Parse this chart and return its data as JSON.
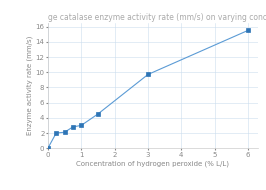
{
  "title": "ge catalase enzyme activity rate (mm/s) on varying concentrations of diluted hydrogen p",
  "xlabel": "Concentration of hydrogen peroxide (% L/L)",
  "ylabel": "Enzyme activity rate (mm/s)",
  "x": [
    0,
    0.25,
    0.5,
    0.75,
    1.0,
    1.5,
    3.0,
    6.0
  ],
  "y": [
    0,
    2.0,
    2.1,
    2.8,
    3.0,
    4.5,
    9.7,
    15.5
  ],
  "xlim": [
    0,
    6.3
  ],
  "ylim": [
    0,
    16.5
  ],
  "xticks": [
    0,
    1,
    2,
    3,
    4,
    5,
    6
  ],
  "yticks": [
    0,
    2,
    4,
    6,
    8,
    10,
    12,
    14,
    16
  ],
  "line_color": "#5B9BD5",
  "marker_color": "#2E75B6",
  "marker_style": "s",
  "marker_size": 2.8,
  "line_width": 0.8,
  "bg_color": "#FFFFFF",
  "grid_color": "#CCDDEE",
  "title_fontsize": 5.5,
  "label_fontsize": 5.0,
  "tick_fontsize": 5.0,
  "title_color": "#AAAAAA",
  "label_color": "#888888",
  "tick_color": "#888888"
}
